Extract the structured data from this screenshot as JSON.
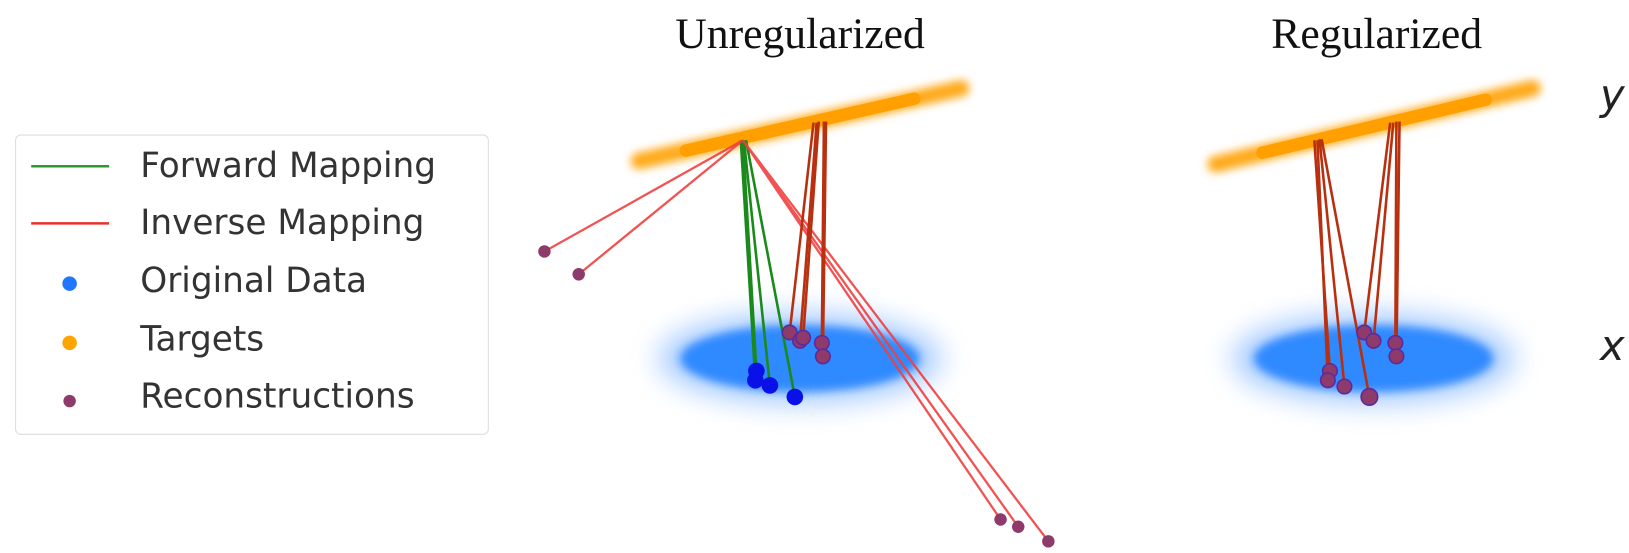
{
  "titles": {
    "left": "Unregularized",
    "right": "Regularized"
  },
  "legend": {
    "items": [
      "Forward Mapping",
      "Inverse Mapping",
      "Original Data",
      "Targets",
      "Reconstructions"
    ]
  },
  "axis_labels": {
    "y": "y",
    "x": "x"
  }
}
